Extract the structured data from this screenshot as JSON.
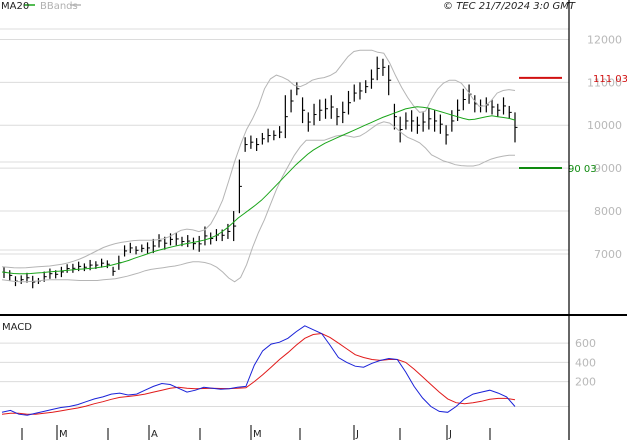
{
  "header": {
    "legend_ma": "MA20",
    "legend_bb": "BBands",
    "copyright": "© TEC 21/7/2024 3:0 GMT",
    "macd_label": "MACD"
  },
  "colors": {
    "ma": "#1aa51a",
    "bands": "#b5b5b5",
    "bars": "#000000",
    "resistance": "#d11010",
    "support": "#0f8a0f",
    "macd": "#1a22d8",
    "signal": "#e11a1a",
    "grid": "#dcdcdc"
  },
  "chart_data": [
    {
      "type": "line",
      "title": "",
      "x_ticks": [
        "M",
        "A",
        "M",
        "J",
        "J"
      ],
      "y_ticks": [
        7000,
        8000,
        9000,
        10000,
        11000,
        12000
      ],
      "y_tick_labels": [
        "7000",
        "8000",
        "9000",
        "10000",
        "11000",
        "12000"
      ],
      "ylim": [
        5600,
        12500
      ],
      "grid": true,
      "resistance": {
        "value": 11103,
        "label": "111 03"
      },
      "support": {
        "value": 9003,
        "label": "90 03"
      },
      "series": [
        {
          "name": "MA20",
          "values": [
            6580,
            6560,
            6545,
            6540,
            6540,
            6545,
            6555,
            6565,
            6580,
            6590,
            6600,
            6615,
            6625,
            6640,
            6650,
            6660,
            6670,
            6690,
            6710,
            6740,
            6775,
            6810,
            6850,
            6900,
            6945,
            6990,
            7040,
            7080,
            7115,
            7150,
            7180,
            7210,
            7240,
            7265,
            7290,
            7320,
            7360,
            7420,
            7500,
            7600,
            7720,
            7840,
            7940,
            8040,
            8140,
            8250,
            8380,
            8520,
            8660,
            8800,
            8940,
            9080,
            9200,
            9320,
            9420,
            9500,
            9580,
            9640,
            9700,
            9760,
            9820,
            9880,
            9940,
            10000,
            10060,
            10120,
            10180,
            10230,
            10280,
            10330,
            10380,
            10410,
            10430,
            10420,
            10400,
            10360,
            10320,
            10280,
            10240,
            10200,
            10160,
            10130,
            10140,
            10170,
            10200,
            10220,
            10200,
            10180,
            10160,
            10120
          ]
        },
        {
          "name": "BBands",
          "values": [
            6700,
            6690,
            6680,
            6675,
            6680,
            6690,
            6700,
            6710,
            6720,
            6740,
            6760,
            6790,
            6830,
            6880,
            6940,
            7010,
            7080,
            7150,
            7200,
            7240,
            7270,
            7290,
            7310,
            7320,
            7320,
            7320,
            7330,
            7350,
            7400,
            7480,
            7550,
            7580,
            7560,
            7520,
            7560,
            7700,
            7950,
            8260,
            8700,
            9150,
            9550,
            9900,
            10150,
            10450,
            10850,
            11080,
            11170,
            11120,
            11050,
            10930,
            10900,
            10960,
            11050,
            11090,
            11110,
            11160,
            11240,
            11420,
            11600,
            11720,
            11750,
            11750,
            11750,
            11700,
            11680,
            11450,
            11150,
            10880,
            10650,
            10450,
            10300,
            10330,
            10610,
            10840,
            10980,
            11050,
            11050,
            10980,
            10810,
            10610,
            10440,
            10450,
            10570,
            10750,
            10810,
            10830,
            10810
          ]
        },
        {
          "name": "BBandsLower",
          "values": [
            6400,
            6380,
            6360,
            6350,
            6350,
            6360,
            6370,
            6390,
            6400,
            6400,
            6400,
            6400,
            6390,
            6380,
            6380,
            6380,
            6380,
            6400,
            6410,
            6420,
            6450,
            6480,
            6520,
            6560,
            6610,
            6640,
            6660,
            6680,
            6700,
            6720,
            6750,
            6790,
            6820,
            6820,
            6800,
            6760,
            6690,
            6580,
            6440,
            6350,
            6450,
            6750,
            7150,
            7500,
            7800,
            8150,
            8500,
            8800,
            9050,
            9300,
            9500,
            9650,
            9650,
            9650,
            9650,
            9700,
            9750,
            9770,
            9750,
            9720,
            9750,
            9830,
            9930,
            10030,
            10080,
            10050,
            9940,
            9820,
            9720,
            9660,
            9590,
            9470,
            9310,
            9240,
            9170,
            9130,
            9080,
            9060,
            9050,
            9050,
            9080,
            9150,
            9210,
            9250,
            9280,
            9300,
            9300
          ]
        }
      ],
      "ohlc_note": "price bars",
      "bars": [
        {
          "h": 6700,
          "l": 6440
        },
        {
          "h": 6620,
          "l": 6380
        },
        {
          "h": 6480,
          "l": 6250
        },
        {
          "h": 6500,
          "l": 6300
        },
        {
          "h": 6560,
          "l": 6330
        },
        {
          "h": 6490,
          "l": 6200
        },
        {
          "h": 6440,
          "l": 6300
        },
        {
          "h": 6590,
          "l": 6350
        },
        {
          "h": 6660,
          "l": 6420
        },
        {
          "h": 6620,
          "l": 6430
        },
        {
          "h": 6700,
          "l": 6460
        },
        {
          "h": 6760,
          "l": 6560
        },
        {
          "h": 6770,
          "l": 6560
        },
        {
          "h": 6820,
          "l": 6600
        },
        {
          "h": 6780,
          "l": 6600
        },
        {
          "h": 6860,
          "l": 6620
        },
        {
          "h": 6830,
          "l": 6650
        },
        {
          "h": 6890,
          "l": 6680
        },
        {
          "h": 6850,
          "l": 6670
        },
        {
          "h": 6700,
          "l": 6490
        },
        {
          "h": 6960,
          "l": 6630
        },
        {
          "h": 7200,
          "l": 6940
        },
        {
          "h": 7260,
          "l": 7020
        },
        {
          "h": 7180,
          "l": 6990
        },
        {
          "h": 7220,
          "l": 7040
        },
        {
          "h": 7270,
          "l": 7010
        },
        {
          "h": 7350,
          "l": 7020
        },
        {
          "h": 7460,
          "l": 7150
        },
        {
          "h": 7400,
          "l": 7100
        },
        {
          "h": 7480,
          "l": 7200
        },
        {
          "h": 7500,
          "l": 7200
        },
        {
          "h": 7400,
          "l": 7180
        },
        {
          "h": 7440,
          "l": 7160
        },
        {
          "h": 7380,
          "l": 7100
        },
        {
          "h": 7420,
          "l": 7050
        },
        {
          "h": 7640,
          "l": 7200
        },
        {
          "h": 7500,
          "l": 7220
        },
        {
          "h": 7580,
          "l": 7300
        },
        {
          "h": 7570,
          "l": 7300
        },
        {
          "h": 7700,
          "l": 7350
        },
        {
          "h": 8000,
          "l": 7300
        },
        {
          "h": 9200,
          "l": 7950
        },
        {
          "h": 9720,
          "l": 9380
        },
        {
          "h": 9760,
          "l": 9450
        },
        {
          "h": 9700,
          "l": 9400
        },
        {
          "h": 9820,
          "l": 9550
        },
        {
          "h": 9920,
          "l": 9600
        },
        {
          "h": 9880,
          "l": 9650
        },
        {
          "h": 9980,
          "l": 9700
        },
        {
          "h": 10700,
          "l": 9700
        },
        {
          "h": 10830,
          "l": 10300
        },
        {
          "h": 11000,
          "l": 10700
        },
        {
          "h": 10650,
          "l": 10050
        },
        {
          "h": 10300,
          "l": 9850
        },
        {
          "h": 10500,
          "l": 10000
        },
        {
          "h": 10600,
          "l": 10100
        },
        {
          "h": 10620,
          "l": 10150
        },
        {
          "h": 10700,
          "l": 10150
        },
        {
          "h": 10400,
          "l": 10000
        },
        {
          "h": 10550,
          "l": 10050
        },
        {
          "h": 10800,
          "l": 10250
        },
        {
          "h": 10950,
          "l": 10550
        },
        {
          "h": 11000,
          "l": 10600
        },
        {
          "h": 11050,
          "l": 10750
        },
        {
          "h": 11300,
          "l": 10850
        },
        {
          "h": 11600,
          "l": 11050
        },
        {
          "h": 11550,
          "l": 11150
        },
        {
          "h": 11400,
          "l": 10700
        },
        {
          "h": 10500,
          "l": 9900
        },
        {
          "h": 10200,
          "l": 9600
        },
        {
          "h": 10300,
          "l": 9900
        },
        {
          "h": 10350,
          "l": 9850
        },
        {
          "h": 10200,
          "l": 9800
        },
        {
          "h": 10300,
          "l": 9850
        },
        {
          "h": 10400,
          "l": 9900
        },
        {
          "h": 10350,
          "l": 9850
        },
        {
          "h": 10250,
          "l": 9800
        },
        {
          "h": 10000,
          "l": 9550
        },
        {
          "h": 10350,
          "l": 9850
        },
        {
          "h": 10600,
          "l": 10100
        },
        {
          "h": 10850,
          "l": 10350
        },
        {
          "h": 10950,
          "l": 10500
        },
        {
          "h": 10700,
          "l": 10300
        },
        {
          "h": 10600,
          "l": 10300
        },
        {
          "h": 10650,
          "l": 10300
        },
        {
          "h": 10600,
          "l": 10250
        },
        {
          "h": 10500,
          "l": 10200
        },
        {
          "h": 10650,
          "l": 10250
        },
        {
          "h": 10450,
          "l": 10150
        },
        {
          "h": 10300,
          "l": 9600
        }
      ]
    },
    {
      "type": "line",
      "title": "MACD",
      "y_ticks": [
        200,
        400,
        600
      ],
      "y_tick_labels": [
        "200",
        "400",
        "600"
      ],
      "ylim": [
        -200,
        820
      ],
      "grid": true,
      "series": [
        {
          "name": "MACD",
          "values": [
            -120,
            -100,
            -140,
            -150,
            -130,
            -110,
            -90,
            -70,
            -60,
            -40,
            -10,
            20,
            40,
            70,
            80,
            60,
            70,
            110,
            150,
            180,
            170,
            130,
            90,
            110,
            140,
            130,
            120,
            125,
            140,
            150,
            370,
            520,
            590,
            610,
            650,
            720,
            780,
            740,
            700,
            580,
            450,
            400,
            360,
            350,
            390,
            420,
            440,
            430,
            300,
            150,
            30,
            -60,
            -110,
            -120,
            -60,
            20,
            70,
            90,
            110,
            80,
            40,
            -60
          ]
        },
        {
          "name": "Signal",
          "values": [
            -140,
            -130,
            -130,
            -140,
            -140,
            -130,
            -120,
            -105,
            -90,
            -75,
            -55,
            -30,
            -10,
            15,
            35,
            45,
            55,
            70,
            90,
            110,
            130,
            140,
            130,
            125,
            128,
            130,
            128,
            127,
            130,
            135,
            200,
            270,
            350,
            430,
            500,
            580,
            650,
            690,
            700,
            660,
            600,
            540,
            480,
            450,
            430,
            420,
            430,
            430,
            400,
            330,
            250,
            170,
            90,
            20,
            -20,
            -30,
            -20,
            -5,
            15,
            25,
            25,
            10
          ]
        }
      ]
    }
  ]
}
